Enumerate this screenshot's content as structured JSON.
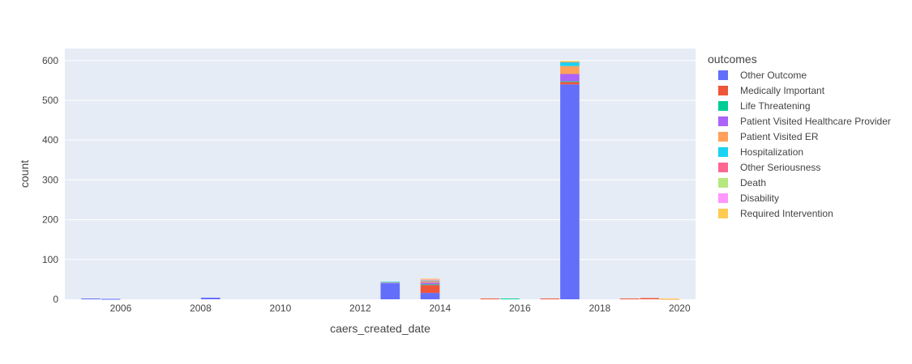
{
  "chart_data": {
    "type": "bar",
    "barmode": "stack",
    "xlabel": "caers_created_date",
    "ylabel": "count",
    "xlim": [
      2004.6,
      2020.4
    ],
    "ylim": [
      0,
      630
    ],
    "x_ticks": [
      "2006",
      "2008",
      "2010",
      "2012",
      "2014",
      "2016",
      "2018",
      "2020"
    ],
    "y_ticks": [
      "0",
      "100",
      "200",
      "300",
      "400",
      "500",
      "600"
    ],
    "grid": true,
    "legend": {
      "title": "outcomes",
      "placement": "right"
    },
    "bins": [
      {
        "start": 2005.0,
        "end": 2005.5
      },
      {
        "start": 2005.5,
        "end": 2006.0
      },
      {
        "start": 2007.5,
        "end": 2008.0
      },
      {
        "start": 2008.0,
        "end": 2008.5
      },
      {
        "start": 2012.5,
        "end": 2013.0
      },
      {
        "start": 2013.5,
        "end": 2014.0
      },
      {
        "start": 2015.0,
        "end": 2015.5
      },
      {
        "start": 2015.5,
        "end": 2016.0
      },
      {
        "start": 2016.5,
        "end": 2017.0
      },
      {
        "start": 2017.0,
        "end": 2017.5
      },
      {
        "start": 2018.5,
        "end": 2019.0
      },
      {
        "start": 2019.0,
        "end": 2019.5
      },
      {
        "start": 2019.5,
        "end": 2020.0
      }
    ],
    "series": [
      {
        "name": "Other Outcome",
        "color": "#636efa",
        "values": [
          2,
          1,
          0,
          4,
          40,
          16,
          0,
          0,
          0,
          540,
          0,
          0,
          0
        ]
      },
      {
        "name": "Medically Important",
        "color": "#ef553b",
        "values": [
          0,
          0,
          0,
          0,
          0,
          20,
          2,
          0,
          2,
          6,
          2,
          3,
          0
        ]
      },
      {
        "name": "Life Threatening",
        "color": "#00cc96",
        "values": [
          0,
          0,
          0,
          0,
          0,
          2,
          0,
          2,
          0,
          2,
          0,
          0,
          0
        ]
      },
      {
        "name": "Patient Visited Healthcare Provider",
        "color": "#ab63fa",
        "values": [
          0,
          0,
          0,
          0,
          2,
          4,
          0,
          0,
          0,
          18,
          0,
          0,
          0
        ]
      },
      {
        "name": "Patient Visited ER",
        "color": "#ffa15a",
        "values": [
          0,
          0,
          0,
          0,
          1,
          3,
          0,
          0,
          0,
          20,
          0,
          0,
          1
        ]
      },
      {
        "name": "Hospitalization",
        "color": "#19d3f3",
        "values": [
          0,
          0,
          0,
          0,
          1,
          2,
          0,
          0,
          0,
          10,
          0,
          0,
          0
        ]
      },
      {
        "name": "Other Seriousness",
        "color": "#ff6692",
        "values": [
          0,
          0,
          0,
          0,
          0,
          1,
          0,
          0,
          0,
          1,
          0,
          0,
          0
        ]
      },
      {
        "name": "Death",
        "color": "#b6e880",
        "values": [
          0,
          0,
          0,
          0,
          0,
          1,
          0,
          0,
          0,
          1,
          0,
          0,
          0
        ]
      },
      {
        "name": "Disability",
        "color": "#ff97ff",
        "values": [
          0,
          0,
          0,
          0,
          0,
          1,
          0,
          0,
          0,
          0,
          0,
          0,
          0
        ]
      },
      {
        "name": "Required Intervention",
        "color": "#fecb52",
        "values": [
          0,
          0,
          0,
          0,
          0,
          2,
          0,
          0,
          0,
          1,
          0,
          0,
          1
        ]
      }
    ]
  }
}
